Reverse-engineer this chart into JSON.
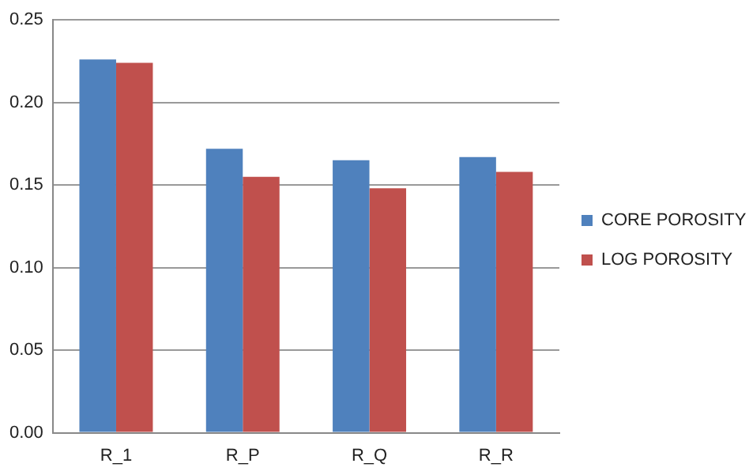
{
  "chart_data": {
    "type": "bar",
    "categories": [
      "R_1",
      "R_P",
      "R_Q",
      "R_R"
    ],
    "series": [
      {
        "name": "CORE POROSITY",
        "color": "#4f81bd",
        "values": [
          0.226,
          0.172,
          0.165,
          0.167
        ]
      },
      {
        "name": "LOG POROSITY",
        "color": "#c0504d",
        "values": [
          0.224,
          0.155,
          0.148,
          0.158
        ]
      }
    ],
    "ylim": [
      0,
      0.25
    ],
    "yticks": [
      {
        "value": 0,
        "label": "0.00"
      },
      {
        "value": 0.05,
        "label": "0.05"
      },
      {
        "value": 0.1,
        "label": "0.10"
      },
      {
        "value": 0.15,
        "label": "0.15"
      },
      {
        "value": 0.2,
        "label": "0.20"
      },
      {
        "value": 0.25,
        "label": "0.25"
      }
    ],
    "grid": "y",
    "legend": "right"
  }
}
